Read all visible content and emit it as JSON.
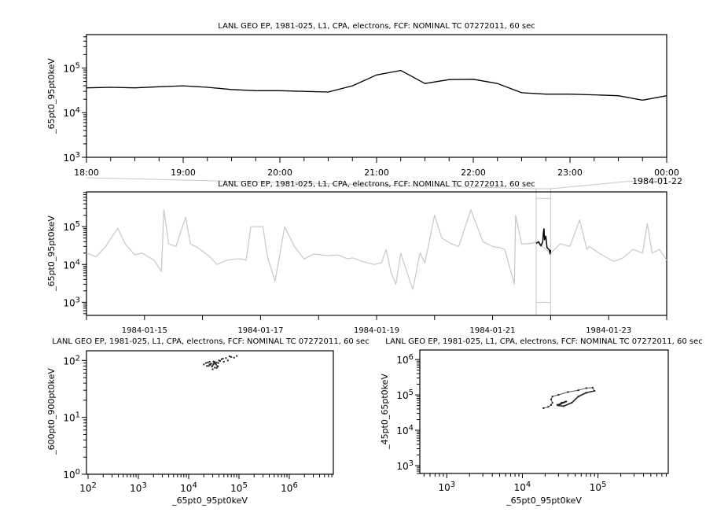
{
  "chart_data": [
    {
      "type": "line",
      "title": "LANL GEO EP, 1981-025, L1, CPA, electrons, FCF: NOMINAL TC 07272011, 60 sec",
      "ylabel": "_65pt0_95pt0keV",
      "xlabel": "",
      "yscale": "log",
      "ylim": [
        1000,
        560000
      ],
      "xlim": [
        "1984-01-21T18:00",
        "1984-01-22T00:00"
      ],
      "xticks": [
        "18:00",
        "19:00",
        "20:00",
        "21:00",
        "22:00",
        "23:00",
        "00:00"
      ],
      "xtick_extra": "1984-01-22",
      "yticks": [
        "10^3",
        "10^4",
        "10^5"
      ],
      "line_color": "#000000",
      "series": [
        {
          "x": [
            "1984-01-21T18:00",
            "1984-01-21T18:15",
            "1984-01-21T18:30",
            "1984-01-21T18:45",
            "1984-01-21T19:00",
            "1984-01-21T19:15",
            "1984-01-21T19:30",
            "1984-01-21T19:45",
            "1984-01-21T20:00",
            "1984-01-21T20:15",
            "1984-01-21T20:30",
            "1984-01-21T20:45",
            "1984-01-21T21:00",
            "1984-01-21T21:15",
            "1984-01-21T21:30",
            "1984-01-21T21:45",
            "1984-01-21T22:00",
            "1984-01-21T22:15",
            "1984-01-21T22:30",
            "1984-01-21T22:45",
            "1984-01-21T23:00",
            "1984-01-21T23:15",
            "1984-01-21T23:30",
            "1984-01-21T23:45",
            "1984-01-22T00:00"
          ],
          "y": [
            36000,
            37000,
            36000,
            38000,
            40000,
            37000,
            33000,
            31000,
            31000,
            30000,
            29000,
            40000,
            70000,
            88000,
            45000,
            55000,
            56000,
            45000,
            28000,
            26000,
            26000,
            25000,
            24000,
            19000,
            24000
          ]
        }
      ]
    },
    {
      "type": "line",
      "title": "LANL GEO EP, 1981-025, L1, CPA, electrons, FCF: NOMINAL TC 07272011, 60 sec",
      "ylabel": "_65pt0_95pt0keV",
      "xlabel": "",
      "yscale": "log",
      "ylim": [
        450,
        830000
      ],
      "xlim": [
        "1984-01-14T00:00",
        "1984-01-24T00:00"
      ],
      "xticks": [
        "1984-01-15",
        "1984-01-17",
        "1984-01-19",
        "1984-01-21",
        "1984-01-23"
      ],
      "yticks": [
        "10^3",
        "10^4",
        "10^5"
      ],
      "highlight_range": [
        "1984-01-21T18:00",
        "1984-01-22T00:00"
      ],
      "context_color": "#c8c8c8",
      "highlight_color": "#000000",
      "series": [
        {
          "x": [
            "1984-01-14T00:00",
            "1984-01-14T04:00",
            "1984-01-14T08:00",
            "1984-01-14T11:00",
            "1984-01-14T13:00",
            "1984-01-14T16:00",
            "1984-01-14T20:00",
            "1984-01-14T23:00",
            "1984-01-15T04:00",
            "1984-01-15T07:00",
            "1984-01-15T08:00",
            "1984-01-15T10:00",
            "1984-01-15T13:00",
            "1984-01-15T17:00",
            "1984-01-15T19:00",
            "1984-01-15T22:00",
            "1984-01-16T03:00",
            "1984-01-16T06:00",
            "1984-01-16T10:00",
            "1984-01-16T14:00",
            "1984-01-16T18:00",
            "1984-01-16T16:00",
            "1984-01-16T20:00",
            "1984-01-17T01:00",
            "1984-01-17T02:00",
            "1984-01-17T03:00",
            "1984-01-17T06:00",
            "1984-01-17T10:00",
            "1984-01-17T14:00",
            "1984-01-17T18:00",
            "1984-01-17T22:00",
            "1984-01-18T04:00",
            "1984-01-18T08:00",
            "1984-01-18T12:00",
            "1984-01-18T14:00",
            "1984-01-18T18:00",
            "1984-01-18T23:00",
            "1984-01-19T02:00",
            "1984-01-19T04:00",
            "1984-01-19T06:00",
            "1984-01-19T08:00",
            "1984-01-19T10:00",
            "1984-01-19T12:00",
            "1984-01-19T15:00",
            "1984-01-19T18:00",
            "1984-01-19T20:00",
            "1984-01-20T00:00",
            "1984-01-20T03:00",
            "1984-01-20T07:00",
            "1984-01-20T10:00",
            "1984-01-20T15:00",
            "1984-01-20T20:00",
            "1984-01-21T00:00",
            "1984-01-21T03:00",
            "1984-01-21T05:00",
            "1984-01-21T09:00",
            "1984-01-21T09:30",
            "1984-01-21T12:00",
            "1984-01-21T16:00",
            "1984-01-21T18:00",
            "1984-01-22T00:00",
            "1984-01-22T04:00",
            "1984-01-22T08:00",
            "1984-01-22T12:00",
            "1984-01-22T15:00",
            "1984-01-22T16:00",
            "1984-01-22T20:00",
            "1984-01-23T02:00",
            "1984-01-23T06:00",
            "1984-01-23T10:00",
            "1984-01-23T14:00",
            "1984-01-23T16:00",
            "1984-01-23T18:00",
            "1984-01-23T21:00",
            "1984-01-24T00:00"
          ],
          "y": [
            20000,
            16000,
            30000,
            60000,
            90000,
            35000,
            18000,
            20000,
            13000,
            6500,
            280000,
            35000,
            30000,
            180000,
            35000,
            28000,
            16000,
            10000,
            13000,
            14000,
            13000,
            14000,
            100000,
            100000,
            35000,
            15000,
            3600,
            100000,
            30000,
            14000,
            19000,
            17000,
            18000,
            14000,
            15000,
            12000,
            10000,
            11000,
            25000,
            6000,
            3000,
            20000,
            8000,
            2200,
            20000,
            11000,
            200000,
            50000,
            35000,
            30000,
            280000,
            40000,
            30000,
            28000,
            25000,
            3000,
            200000,
            35000,
            36000,
            40000,
            20000,
            35000,
            30000,
            150000,
            25000,
            30000,
            20000,
            12000,
            15000,
            25000,
            20000,
            120000,
            20000,
            25000,
            13000
          ]
        },
        {
          "name": "",
          "highlight": true,
          "x": [
            "1984-01-21T18:00",
            "1984-01-21T19:00",
            "1984-01-21T20:00",
            "1984-01-21T20:45",
            "1984-01-21T21:00",
            "1984-01-21T21:15",
            "1984-01-21T21:30",
            "1984-01-21T22:00",
            "1984-01-21T22:30",
            "1984-01-21T23:00",
            "1984-01-21T23:30",
            "1984-01-21T23:45",
            "1984-01-22T00:00"
          ],
          "y": [
            36000,
            40000,
            31000,
            40000,
            70000,
            88000,
            45000,
            56000,
            28000,
            26000,
            24000,
            19000,
            24000
          ]
        }
      ]
    },
    {
      "type": "scatter",
      "title": "LANL GEO EP, 1981-025, L1, CPA, electrons, FCF: NOMINAL TC 07272011, 60 sec",
      "xlabel": "_65pt0_95pt0keV",
      "ylabel": "_600pt0_900pt0keV",
      "xscale": "log",
      "yscale": "log",
      "xlim": [
        93,
        7500000
      ],
      "ylim": [
        1,
        148
      ],
      "xticks": [
        "10^2",
        "10^3",
        "10^4",
        "10^5",
        "10^6"
      ],
      "yticks": [
        "10^0",
        "10^1",
        "10^2"
      ],
      "points": [
        [
          20000,
          85
        ],
        [
          22000,
          90
        ],
        [
          25000,
          80
        ],
        [
          26000,
          95
        ],
        [
          28000,
          88
        ],
        [
          30000,
          82
        ],
        [
          32000,
          90
        ],
        [
          33000,
          75
        ],
        [
          35000,
          85
        ],
        [
          36000,
          92
        ],
        [
          38000,
          78
        ],
        [
          30000,
          70
        ],
        [
          40000,
          100
        ],
        [
          45000,
          105
        ],
        [
          50000,
          95
        ],
        [
          55000,
          110
        ],
        [
          60000,
          100
        ],
        [
          70000,
          115
        ],
        [
          80000,
          112
        ],
        [
          90000,
          120
        ],
        [
          24000,
          92
        ],
        [
          27000,
          84
        ],
        [
          31000,
          96
        ],
        [
          34000,
          88
        ],
        [
          37000,
          80
        ],
        [
          42000,
          98
        ],
        [
          48000,
          108
        ],
        [
          65000,
          118
        ],
        [
          29000,
          78
        ],
        [
          33000,
          94
        ],
        [
          23000,
          80
        ],
        [
          26000,
          86
        ],
        [
          36000,
          74
        ],
        [
          39000,
          90
        ],
        [
          31000,
          86
        ]
      ]
    },
    {
      "type": "scatter",
      "title": "LANL GEO EP, 1981-025, L1, CPA, electrons, FCF: NOMINAL TC 07272011, 60 sec",
      "xlabel": "_65pt0_95pt0keV",
      "ylabel": "_45pt0_65pt0keV",
      "xscale": "log",
      "yscale": "log",
      "xlim": [
        440,
        850000
      ],
      "ylim": [
        600,
        1860000
      ],
      "xticks": [
        "10^3",
        "10^4",
        "10^5"
      ],
      "yticks": [
        "10^3",
        "10^4",
        "10^5",
        "10^6"
      ],
      "points": [
        [
          19000,
          42000
        ],
        [
          22000,
          46000
        ],
        [
          24000,
          52000
        ],
        [
          25000,
          60000
        ],
        [
          24000,
          75000
        ],
        [
          25000,
          90000
        ],
        [
          30000,
          100000
        ],
        [
          40000,
          120000
        ],
        [
          55000,
          135000
        ],
        [
          70000,
          155000
        ],
        [
          85000,
          160000
        ],
        [
          90000,
          130000
        ],
        [
          70000,
          115000
        ],
        [
          55000,
          90000
        ],
        [
          45000,
          60000
        ],
        [
          35000,
          48000
        ],
        [
          30000,
          50000
        ],
        [
          33000,
          60000
        ],
        [
          38000,
          65000
        ],
        [
          32000,
          55000
        ],
        [
          36000,
          62000
        ],
        [
          29000,
          52000
        ]
      ]
    }
  ]
}
